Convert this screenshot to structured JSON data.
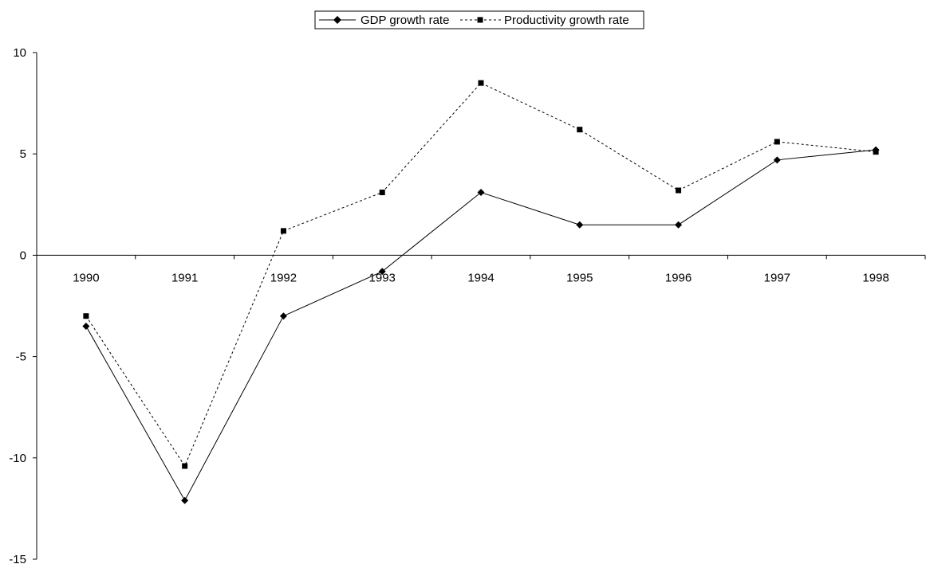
{
  "chart_data": {
    "type": "line",
    "title": "",
    "xlabel": "",
    "ylabel": "",
    "categories": [
      "1990",
      "1991",
      "1992",
      "1993",
      "1994",
      "1995",
      "1996",
      "1997",
      "1998"
    ],
    "ylim": [
      -15,
      10
    ],
    "yticks": [
      10,
      5,
      0,
      -5,
      -10,
      -15
    ],
    "legend_position": "top-center",
    "series": [
      {
        "name": "GDP growth rate",
        "line_style": "solid",
        "marker": "diamond",
        "color": "#000000",
        "values": [
          -3.5,
          -12.1,
          -3.0,
          -0.8,
          3.1,
          1.5,
          1.5,
          4.7,
          5.2
        ]
      },
      {
        "name": "Productivity growth rate",
        "line_style": "dashed",
        "marker": "square",
        "color": "#000000",
        "values": [
          -3.0,
          -10.4,
          1.2,
          3.1,
          8.5,
          6.2,
          3.2,
          5.6,
          5.1
        ]
      }
    ]
  }
}
